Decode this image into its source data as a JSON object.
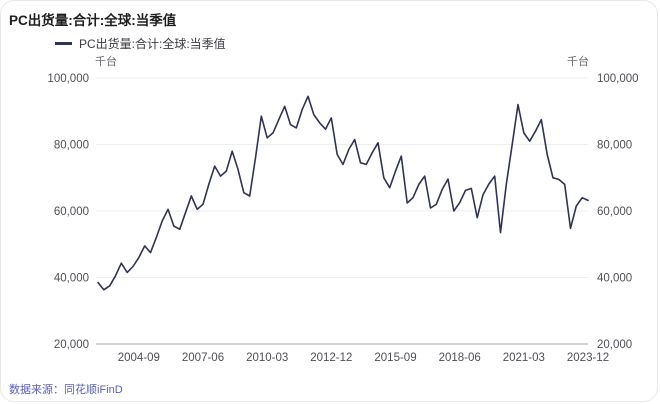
{
  "title": "PC出货量:合计:全球:当季值",
  "legend": {
    "label": "PC出货量:合计:全球:当季值"
  },
  "unit_label_left": "千台",
  "unit_label_right": "千台",
  "footer": {
    "source_label": "数据来源：同花顺iFinD"
  },
  "colors": {
    "line": "#2f3356",
    "grid": "#ededf2",
    "axis": "#a5a5ad",
    "tick_text": "#4f4f58",
    "title_text": "#1f1f1f",
    "legend_text": "#3a3a42",
    "unit_text": "#68686f",
    "source_text": "#5a5fb4",
    "card_border": "#e8e8ec",
    "background": "#ffffff"
  },
  "chart_data": {
    "type": "line",
    "title": "PC出货量:合计:全球:当季值",
    "series_name": "PC出货量:合计:全球:当季值",
    "unit": "千台",
    "frequency": "quarterly",
    "grid": "horizontal",
    "legend_position": "top-left",
    "ylim": [
      20000,
      100000
    ],
    "y_ticks": [
      20000,
      40000,
      60000,
      80000,
      100000
    ],
    "x_tick_labels": [
      "2004-09",
      "2007-06",
      "2010-03",
      "2012-12",
      "2015-09",
      "2018-06",
      "2021-03",
      "2023-12"
    ],
    "x_tick_indices": [
      7,
      18,
      29,
      40,
      51,
      62,
      73,
      84
    ],
    "x": [
      "2002-12",
      "2003-03",
      "2003-06",
      "2003-09",
      "2003-12",
      "2004-03",
      "2004-06",
      "2004-09",
      "2004-12",
      "2005-03",
      "2005-06",
      "2005-09",
      "2005-12",
      "2006-03",
      "2006-06",
      "2006-09",
      "2006-12",
      "2007-03",
      "2007-06",
      "2007-09",
      "2007-12",
      "2008-03",
      "2008-06",
      "2008-09",
      "2008-12",
      "2009-03",
      "2009-06",
      "2009-09",
      "2009-12",
      "2010-03",
      "2010-06",
      "2010-09",
      "2010-12",
      "2011-03",
      "2011-06",
      "2011-09",
      "2011-12",
      "2012-03",
      "2012-06",
      "2012-09",
      "2012-12",
      "2013-03",
      "2013-06",
      "2013-09",
      "2013-12",
      "2014-03",
      "2014-06",
      "2014-09",
      "2014-12",
      "2015-03",
      "2015-06",
      "2015-09",
      "2015-12",
      "2016-03",
      "2016-06",
      "2016-09",
      "2016-12",
      "2017-03",
      "2017-06",
      "2017-09",
      "2017-12",
      "2018-03",
      "2018-06",
      "2018-09",
      "2018-12",
      "2019-03",
      "2019-06",
      "2019-09",
      "2019-12",
      "2020-03",
      "2020-06",
      "2020-09",
      "2020-12",
      "2021-03",
      "2021-06",
      "2021-09",
      "2021-12",
      "2022-03",
      "2022-06",
      "2022-09",
      "2022-12",
      "2023-03",
      "2023-06",
      "2023-09",
      "2023-12"
    ],
    "values": [
      38500,
      36300,
      37500,
      40500,
      44300,
      41500,
      43300,
      46000,
      49500,
      47500,
      52000,
      57000,
      60500,
      55500,
      54500,
      59500,
      64500,
      60500,
      62000,
      68000,
      73500,
      70500,
      72000,
      78000,
      72500,
      65500,
      64500,
      76000,
      88500,
      82000,
      83500,
      87500,
      91500,
      86000,
      85000,
      90500,
      94500,
      89000,
      86500,
      84600,
      88000,
      77000,
      74000,
      78500,
      81500,
      74500,
      74000,
      77500,
      80500,
      70000,
      67000,
      72000,
      76500,
      62400,
      64000,
      68000,
      70500,
      60900,
      62000,
      66500,
      69600,
      60000,
      62500,
      66200,
      66800,
      58000,
      64900,
      68100,
      70500,
      53500,
      68000,
      80000,
      92000,
      83500,
      81000,
      84000,
      87500,
      77000,
      70000,
      69500,
      68000,
      54800,
      61500,
      64000,
      63200
    ]
  }
}
